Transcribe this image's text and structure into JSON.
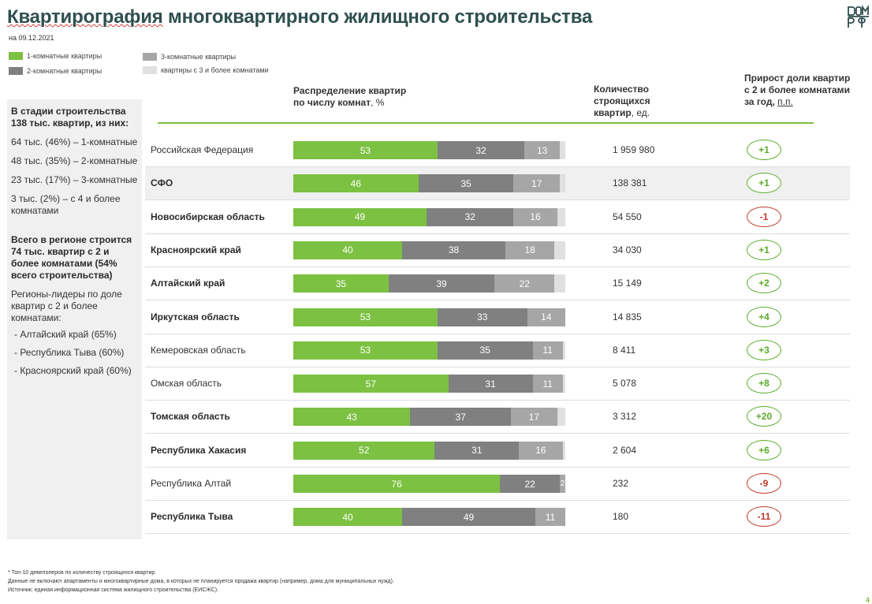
{
  "header": {
    "title_part1": "Квартирография",
    "title_part2": "многоквартирного жилищного строительства",
    "date": "на 09.12.2021"
  },
  "legend": [
    {
      "label": "1-комнатные квартиры",
      "color": "#7cc142"
    },
    {
      "label": "2-комнатные квартиры",
      "color": "#808080"
    },
    {
      "label": "3-комнатные квартиры",
      "color": "#a6a6a6"
    },
    {
      "label": "квартиры с 3 и более комнатами",
      "color": "#e0e0e0"
    }
  ],
  "left_panel": {
    "stage_title": "В стадии строительства 138 тыс. квартир, из них:",
    "breakdown": [
      "64 тыс. (46%) – 1-комнатные",
      "48 тыс. (35%) – 2-комнатные",
      "23 тыс. (17%) – 3-комнатные",
      "3 тыс. (2%) – с 4 и более комнатами"
    ],
    "total_text": "Всего в регионе строится 74 тыс. квартир с 2 и более комнатами (54% всего строительства)",
    "leaders_title": "Регионы-лидеры по доле квартир с 2 и более комнатами:",
    "leaders": [
      "- Алтайский край (65%)",
      "- Республика Тыва (60%)",
      "- Красноярский край (60%)"
    ]
  },
  "columns": {
    "distribution_bold": "Распределение квартир по числу комнат",
    "distribution_unit": ", %",
    "count_bold": "Количество строящихся квартир",
    "count_unit": ", ед.",
    "growth_bold": "Прирост доли квартир с 2 и более комнатами за год,",
    "growth_unit": "п.п."
  },
  "chart_data": {
    "type": "bar",
    "orientation": "horizontal-stacked-100",
    "series_names": [
      "1-комнатные квартиры",
      "2-комнатные квартиры",
      "3-комнатные квартиры",
      "квартиры с 3 и более комнатами"
    ],
    "series_colors": [
      "#7cc142",
      "#808080",
      "#a6a6a6",
      "#e0e0e0"
    ],
    "rows": [
      {
        "region": "Российская Федерация",
        "bold": false,
        "shaded": false,
        "values": [
          53,
          32,
          13
        ],
        "count": "1 959 980",
        "delta": "+1",
        "delta_sign": "pos"
      },
      {
        "region": "СФО",
        "bold": true,
        "shaded": true,
        "values": [
          46,
          35,
          17
        ],
        "count": "138 381",
        "delta": "+1",
        "delta_sign": "pos"
      },
      {
        "region": "Новосибирская область",
        "bold": true,
        "shaded": false,
        "values": [
          49,
          32,
          16
        ],
        "count": "54 550",
        "delta": "-1",
        "delta_sign": "neg"
      },
      {
        "region": "Красноярский край",
        "bold": true,
        "shaded": false,
        "values": [
          40,
          38,
          18
        ],
        "count": "34 030",
        "delta": "+1",
        "delta_sign": "pos"
      },
      {
        "region": "Алтайский край",
        "bold": true,
        "shaded": false,
        "values": [
          35,
          39,
          22
        ],
        "count": "15 149",
        "delta": "+2",
        "delta_sign": "pos"
      },
      {
        "region": "Иркутская область",
        "bold": true,
        "shaded": false,
        "values": [
          53,
          33,
          14
        ],
        "count": "14 835",
        "delta": "+4",
        "delta_sign": "pos"
      },
      {
        "region": "Кемеровская область",
        "bold": false,
        "shaded": false,
        "values": [
          53,
          35,
          11
        ],
        "count": "8 411",
        "delta": "+3",
        "delta_sign": "pos"
      },
      {
        "region": "Омская область",
        "bold": false,
        "shaded": false,
        "values": [
          57,
          31,
          11
        ],
        "count": "5 078",
        "delta": "+8",
        "delta_sign": "pos"
      },
      {
        "region": "Томская область",
        "bold": true,
        "shaded": false,
        "values": [
          43,
          37,
          17
        ],
        "count": "3 312",
        "delta": "+20",
        "delta_sign": "pos"
      },
      {
        "region": "Республика Хакасия",
        "bold": true,
        "shaded": false,
        "values": [
          52,
          31,
          16
        ],
        "count": "2 604",
        "delta": "+6",
        "delta_sign": "pos"
      },
      {
        "region": "Республика Алтай",
        "bold": false,
        "shaded": false,
        "values": [
          76,
          22,
          2
        ],
        "count": "232",
        "delta": "-9",
        "delta_sign": "neg"
      },
      {
        "region": "Республика Тыва",
        "bold": true,
        "shaded": false,
        "values": [
          40,
          49,
          11
        ],
        "count": "180",
        "delta": "-11",
        "delta_sign": "neg"
      }
    ],
    "delta_colors": {
      "pos": "#5aaa2a",
      "neg": "#c0392b"
    }
  },
  "footnotes": [
    "* Топ-10 девелоперов по количеству строящихся квартир.",
    "Данные не включают апартаменты и многоквартирные дома, в которых не планируется продажа квартир (например, дома для муниципальных нужд).",
    "Источник: единая информационная система жилищного строительства (ЕИСЖС)."
  ],
  "page_number": "4",
  "brand": {
    "logo_text": "ДОМ РФ"
  }
}
